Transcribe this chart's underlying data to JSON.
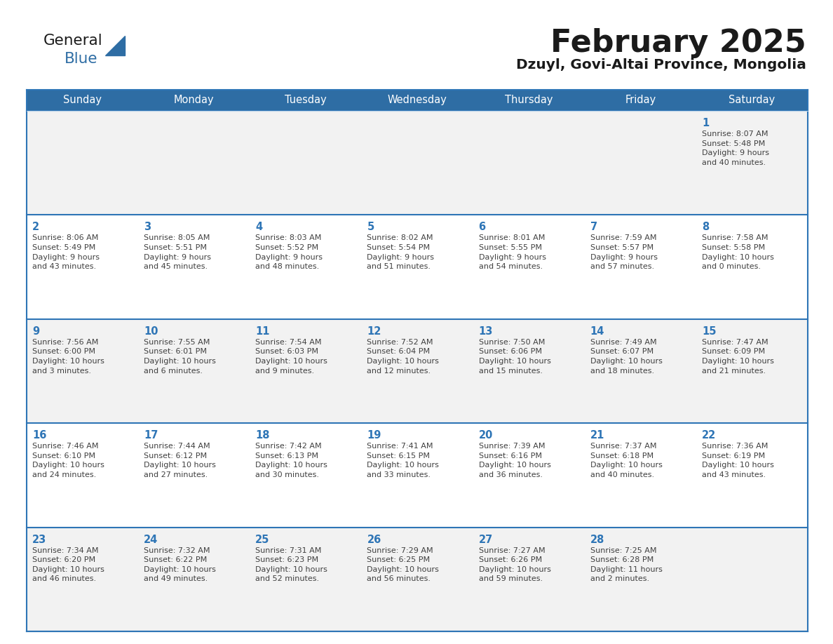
{
  "title": "February 2025",
  "subtitle": "Dzuyl, Govi-Altai Province, Mongolia",
  "days_of_week": [
    "Sunday",
    "Monday",
    "Tuesday",
    "Wednesday",
    "Thursday",
    "Friday",
    "Saturday"
  ],
  "header_bg": "#2E6DA4",
  "header_text": "#FFFFFF",
  "cell_bg_odd": "#F2F2F2",
  "cell_bg_even": "#FFFFFF",
  "border_color": "#2E75B6",
  "day_number_color": "#2E75B6",
  "text_color": "#404040",
  "title_color": "#1a1a1a",
  "subtitle_color": "#1a1a1a",
  "calendar_data": [
    [
      {
        "day": null,
        "info": null
      },
      {
        "day": null,
        "info": null
      },
      {
        "day": null,
        "info": null
      },
      {
        "day": null,
        "info": null
      },
      {
        "day": null,
        "info": null
      },
      {
        "day": null,
        "info": null
      },
      {
        "day": 1,
        "info": "Sunrise: 8:07 AM\nSunset: 5:48 PM\nDaylight: 9 hours\nand 40 minutes."
      }
    ],
    [
      {
        "day": 2,
        "info": "Sunrise: 8:06 AM\nSunset: 5:49 PM\nDaylight: 9 hours\nand 43 minutes."
      },
      {
        "day": 3,
        "info": "Sunrise: 8:05 AM\nSunset: 5:51 PM\nDaylight: 9 hours\nand 45 minutes."
      },
      {
        "day": 4,
        "info": "Sunrise: 8:03 AM\nSunset: 5:52 PM\nDaylight: 9 hours\nand 48 minutes."
      },
      {
        "day": 5,
        "info": "Sunrise: 8:02 AM\nSunset: 5:54 PM\nDaylight: 9 hours\nand 51 minutes."
      },
      {
        "day": 6,
        "info": "Sunrise: 8:01 AM\nSunset: 5:55 PM\nDaylight: 9 hours\nand 54 minutes."
      },
      {
        "day": 7,
        "info": "Sunrise: 7:59 AM\nSunset: 5:57 PM\nDaylight: 9 hours\nand 57 minutes."
      },
      {
        "day": 8,
        "info": "Sunrise: 7:58 AM\nSunset: 5:58 PM\nDaylight: 10 hours\nand 0 minutes."
      }
    ],
    [
      {
        "day": 9,
        "info": "Sunrise: 7:56 AM\nSunset: 6:00 PM\nDaylight: 10 hours\nand 3 minutes."
      },
      {
        "day": 10,
        "info": "Sunrise: 7:55 AM\nSunset: 6:01 PM\nDaylight: 10 hours\nand 6 minutes."
      },
      {
        "day": 11,
        "info": "Sunrise: 7:54 AM\nSunset: 6:03 PM\nDaylight: 10 hours\nand 9 minutes."
      },
      {
        "day": 12,
        "info": "Sunrise: 7:52 AM\nSunset: 6:04 PM\nDaylight: 10 hours\nand 12 minutes."
      },
      {
        "day": 13,
        "info": "Sunrise: 7:50 AM\nSunset: 6:06 PM\nDaylight: 10 hours\nand 15 minutes."
      },
      {
        "day": 14,
        "info": "Sunrise: 7:49 AM\nSunset: 6:07 PM\nDaylight: 10 hours\nand 18 minutes."
      },
      {
        "day": 15,
        "info": "Sunrise: 7:47 AM\nSunset: 6:09 PM\nDaylight: 10 hours\nand 21 minutes."
      }
    ],
    [
      {
        "day": 16,
        "info": "Sunrise: 7:46 AM\nSunset: 6:10 PM\nDaylight: 10 hours\nand 24 minutes."
      },
      {
        "day": 17,
        "info": "Sunrise: 7:44 AM\nSunset: 6:12 PM\nDaylight: 10 hours\nand 27 minutes."
      },
      {
        "day": 18,
        "info": "Sunrise: 7:42 AM\nSunset: 6:13 PM\nDaylight: 10 hours\nand 30 minutes."
      },
      {
        "day": 19,
        "info": "Sunrise: 7:41 AM\nSunset: 6:15 PM\nDaylight: 10 hours\nand 33 minutes."
      },
      {
        "day": 20,
        "info": "Sunrise: 7:39 AM\nSunset: 6:16 PM\nDaylight: 10 hours\nand 36 minutes."
      },
      {
        "day": 21,
        "info": "Sunrise: 7:37 AM\nSunset: 6:18 PM\nDaylight: 10 hours\nand 40 minutes."
      },
      {
        "day": 22,
        "info": "Sunrise: 7:36 AM\nSunset: 6:19 PM\nDaylight: 10 hours\nand 43 minutes."
      }
    ],
    [
      {
        "day": 23,
        "info": "Sunrise: 7:34 AM\nSunset: 6:20 PM\nDaylight: 10 hours\nand 46 minutes."
      },
      {
        "day": 24,
        "info": "Sunrise: 7:32 AM\nSunset: 6:22 PM\nDaylight: 10 hours\nand 49 minutes."
      },
      {
        "day": 25,
        "info": "Sunrise: 7:31 AM\nSunset: 6:23 PM\nDaylight: 10 hours\nand 52 minutes."
      },
      {
        "day": 26,
        "info": "Sunrise: 7:29 AM\nSunset: 6:25 PM\nDaylight: 10 hours\nand 56 minutes."
      },
      {
        "day": 27,
        "info": "Sunrise: 7:27 AM\nSunset: 6:26 PM\nDaylight: 10 hours\nand 59 minutes."
      },
      {
        "day": 28,
        "info": "Sunrise: 7:25 AM\nSunset: 6:28 PM\nDaylight: 11 hours\nand 2 minutes."
      },
      {
        "day": null,
        "info": null
      }
    ]
  ]
}
